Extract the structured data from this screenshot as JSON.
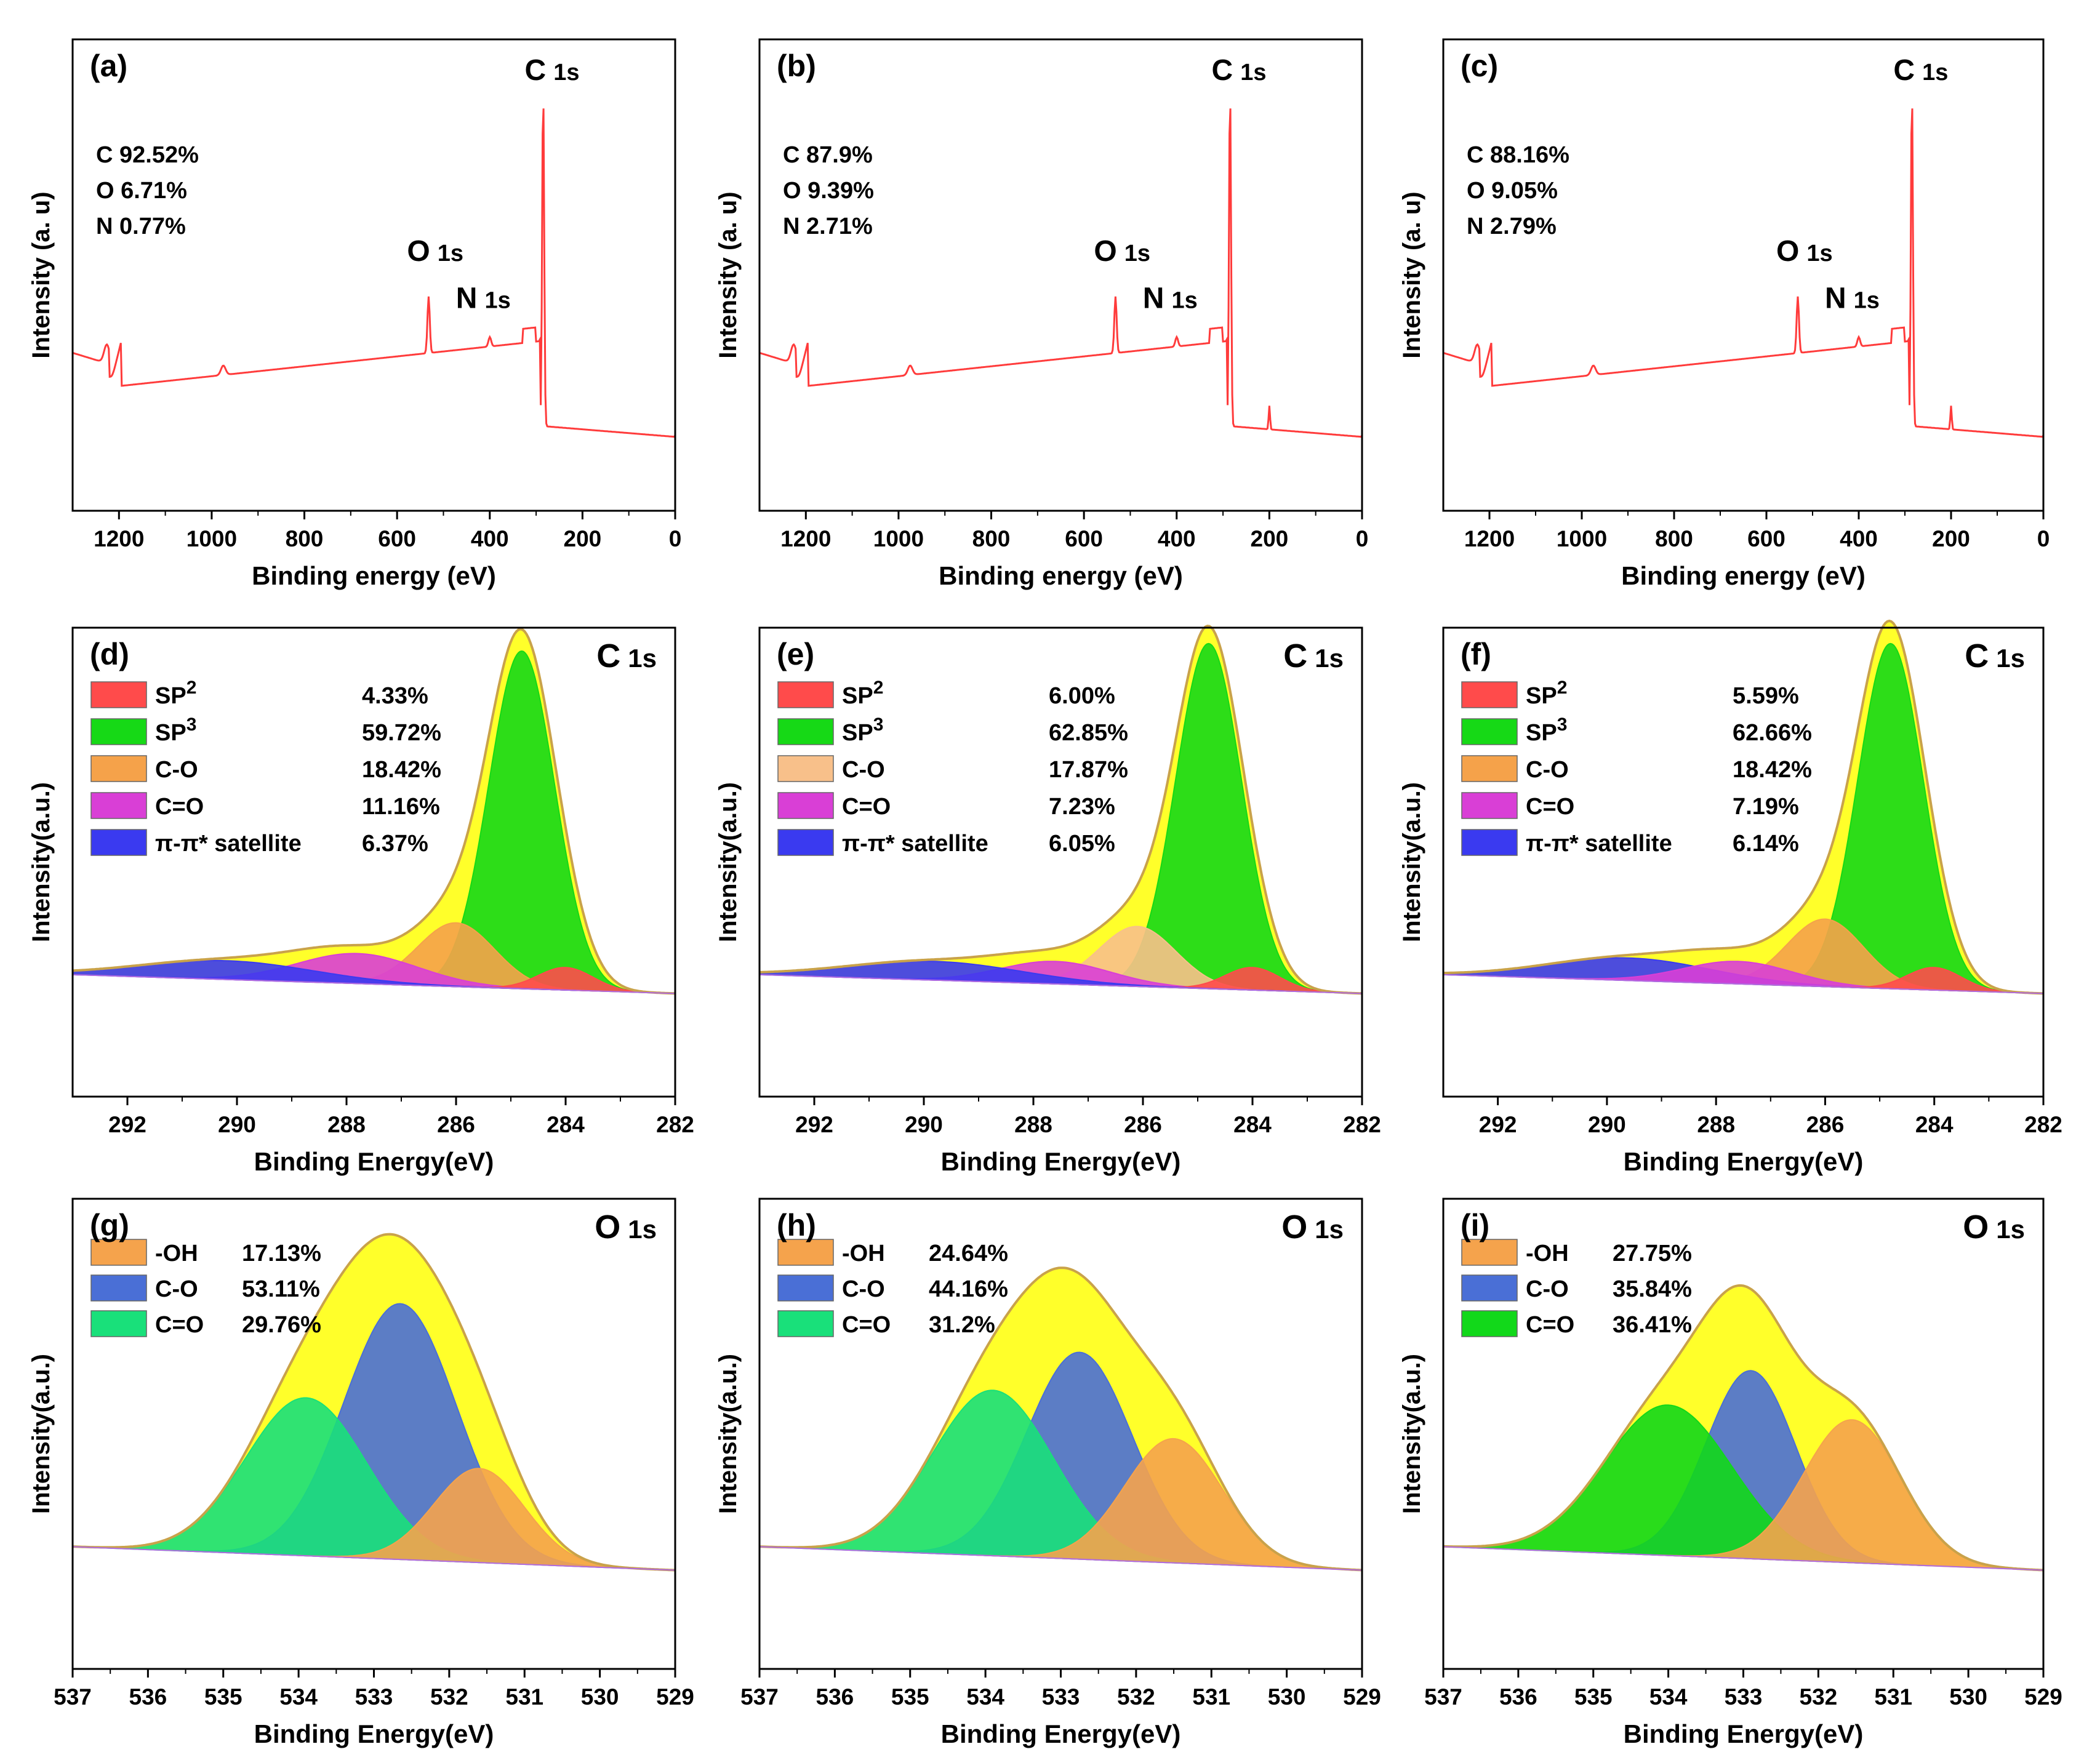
{
  "colors": {
    "survey_line": "#ff3b3b",
    "envelope_fill": "#ffff2a",
    "envelope_line": "#c9a24a",
    "sp2": "#ff4b4b",
    "sp3": "#16d916",
    "c_o": "#f5a24a",
    "c_o_light": "#f8c08a",
    "c_eq_o": "#d93fd6",
    "pi": "#3a3af0",
    "o_oh": "#f5a34c",
    "o_co": "#4a6fd6",
    "o_ceqo": "#19e07a",
    "o_ceqo_i": "#12d81a"
  },
  "chart_data": [
    {
      "id": "a",
      "type": "line",
      "panel_label": "(a)",
      "xlabel": "Binding energy (eV)",
      "ylabel": "Intensity (a. u)",
      "xlim": [
        1300,
        0
      ],
      "xticks": [
        "1200",
        "1000",
        "800",
        "600",
        "400",
        "200",
        "0"
      ],
      "composition": [
        "C 92.52%",
        "O 6.71%",
        "N 0.77%"
      ],
      "peaks": [
        {
          "el": "C",
          "sub": "1s",
          "x": 284.8
        },
        {
          "el": "O",
          "sub": "1s",
          "x": 532
        },
        {
          "el": "N",
          "sub": "1s",
          "x": 400
        }
      ],
      "series": [
        {
          "name": "survey",
          "heights": [
            0.1,
            0.68,
            0.85
          ]
        }
      ]
    },
    {
      "id": "b",
      "type": "line",
      "panel_label": "(b)",
      "xlabel": "Binding energy (eV)",
      "ylabel": "Intensity (a. u)",
      "xlim": [
        1300,
        0
      ],
      "xticks": [
        "1200",
        "1000",
        "800",
        "600",
        "400",
        "200",
        "0"
      ],
      "composition": [
        "C 87.9%",
        "O 9.39%",
        "N 2.71%"
      ],
      "peaks": [
        {
          "el": "C",
          "sub": "1s",
          "x": 284.8
        },
        {
          "el": "O",
          "sub": "1s",
          "x": 532
        },
        {
          "el": "N",
          "sub": "1s",
          "x": 400
        }
      ],
      "series": [
        {
          "name": "survey",
          "heights": [
            0.1,
            0.68,
            0.85
          ]
        }
      ]
    },
    {
      "id": "c",
      "type": "line",
      "panel_label": "(c)",
      "xlabel": "Binding energy (eV)",
      "ylabel": "Intensity (a. u)",
      "xlim": [
        1300,
        0
      ],
      "xticks": [
        "1200",
        "1000",
        "800",
        "600",
        "400",
        "200",
        "0"
      ],
      "composition": [
        "C 88.16%",
        "O 9.05%",
        "N 2.79%"
      ],
      "peaks": [
        {
          "el": "C",
          "sub": "1s",
          "x": 284.8
        },
        {
          "el": "O",
          "sub": "1s",
          "x": 532
        },
        {
          "el": "N",
          "sub": "1s",
          "x": 400
        }
      ],
      "series": [
        {
          "name": "survey",
          "heights": [
            0.1,
            0.68,
            0.85
          ]
        }
      ]
    },
    {
      "id": "d",
      "type": "area",
      "panel_label": "(d)",
      "core": "C",
      "core_sub": "1s",
      "xlabel": "Binding Energy(eV)",
      "ylabel": "Intensity(a.u.)",
      "xlim": [
        293,
        282
      ],
      "xticks": [
        "292",
        "290",
        "288",
        "286",
        "284",
        "282"
      ],
      "legend": [
        {
          "label": "SP",
          "sup": "2",
          "value": "4.33%",
          "color": "#ff4b4b"
        },
        {
          "label": "SP",
          "sup": "3",
          "value": "59.72%",
          "color": "#16d916"
        },
        {
          "label": "C-O",
          "sup": "",
          "value": "18.42%",
          "color": "#f5a24a"
        },
        {
          "label": "C=O",
          "sup": "",
          "value": "11.16%",
          "color": "#d93fd6"
        },
        {
          "label": "π-π* satellite",
          "sup": "",
          "value": "6.37%",
          "color": "#3a3af0"
        }
      ],
      "components": [
        {
          "name": "SP2",
          "center": 284.0,
          "height": 0.06,
          "width": 0.5
        },
        {
          "name": "SP3",
          "center": 284.8,
          "height": 0.9,
          "width": 0.6
        },
        {
          "name": "C-O",
          "center": 286.0,
          "height": 0.17,
          "width": 0.7
        },
        {
          "name": "C=O",
          "center": 287.8,
          "height": 0.08,
          "width": 1.1
        },
        {
          "name": "π-π* satellite",
          "center": 290.2,
          "height": 0.05,
          "width": 1.6
        }
      ]
    },
    {
      "id": "e",
      "type": "area",
      "panel_label": "(e)",
      "core": "C",
      "core_sub": "1s",
      "xlabel": "Binding Energy(eV)",
      "ylabel": "Intensity(a.u.)",
      "xlim": [
        293,
        282
      ],
      "xticks": [
        "292",
        "290",
        "288",
        "286",
        "284",
        "282"
      ],
      "legend": [
        {
          "label": "SP",
          "sup": "2",
          "value": "6.00%",
          "color": "#ff4b4b"
        },
        {
          "label": "SP",
          "sup": "3",
          "value": "62.85%",
          "color": "#16d916"
        },
        {
          "label": "C-O",
          "sup": "",
          "value": "17.87%",
          "color": "#f8c08a"
        },
        {
          "label": "C=O",
          "sup": "",
          "value": "7.23%",
          "color": "#d93fd6"
        },
        {
          "label": "π-π* satellite",
          "sup": "",
          "value": "6.05%",
          "color": "#3a3af0"
        }
      ],
      "components": [
        {
          "name": "SP2",
          "center": 284.0,
          "height": 0.06,
          "width": 0.5
        },
        {
          "name": "SP3",
          "center": 284.8,
          "height": 0.92,
          "width": 0.6
        },
        {
          "name": "C-O",
          "center": 286.1,
          "height": 0.16,
          "width": 0.7
        },
        {
          "name": "C=O",
          "center": 287.6,
          "height": 0.06,
          "width": 1.0
        },
        {
          "name": "π-π* satellite",
          "center": 289.8,
          "height": 0.05,
          "width": 1.6
        }
      ]
    },
    {
      "id": "f",
      "type": "area",
      "panel_label": "(f)",
      "core": "C",
      "core_sub": "1s",
      "xlabel": "Binding Energy(eV)",
      "ylabel": "Intensity(a.u.)",
      "xlim": [
        293,
        282
      ],
      "xticks": [
        "292",
        "290",
        "288",
        "286",
        "284",
        "282"
      ],
      "legend": [
        {
          "label": "SP",
          "sup": "2",
          "value": "5.59%",
          "color": "#ff4b4b"
        },
        {
          "label": "SP",
          "sup": "3",
          "value": "62.66%",
          "color": "#16d916"
        },
        {
          "label": "C-O",
          "sup": "",
          "value": "18.42%",
          "color": "#f5a24a"
        },
        {
          "label": "C=O",
          "sup": "",
          "value": "7.19%",
          "color": "#d93fd6"
        },
        {
          "label": "π-π* satellite",
          "sup": "",
          "value": "6.14%",
          "color": "#3a3af0"
        }
      ],
      "components": [
        {
          "name": "SP2",
          "center": 284.0,
          "height": 0.06,
          "width": 0.5
        },
        {
          "name": "SP3",
          "center": 284.8,
          "height": 0.92,
          "width": 0.6
        },
        {
          "name": "C-O",
          "center": 286.0,
          "height": 0.18,
          "width": 0.7
        },
        {
          "name": "C=O",
          "center": 287.6,
          "height": 0.06,
          "width": 1.0
        },
        {
          "name": "π-π* satellite",
          "center": 289.6,
          "height": 0.06,
          "width": 1.5
        }
      ]
    },
    {
      "id": "g",
      "type": "area",
      "panel_label": "(g)",
      "core": "O",
      "core_sub": "1s",
      "xlabel": "Binding Energy(eV)",
      "ylabel": "Intensity(a.u.)",
      "xlim": [
        537,
        529
      ],
      "xticks": [
        "537",
        "536",
        "535",
        "534",
        "533",
        "532",
        "531",
        "530",
        "529"
      ],
      "legend": [
        {
          "label": "-OH",
          "sup": "",
          "value": "17.13%",
          "color": "#f5a34c"
        },
        {
          "label": "C-O",
          "sup": "",
          "value": "53.11%",
          "color": "#4a6fd6"
        },
        {
          "label": "C=O",
          "sup": "",
          "value": "29.76%",
          "color": "#19e07a"
        }
      ],
      "components": [
        {
          "name": "-OH",
          "center": 531.6,
          "height": 0.25,
          "width": 0.6
        },
        {
          "name": "C-O",
          "center": 532.65,
          "height": 0.68,
          "width": 0.75
        },
        {
          "name": "C=O",
          "center": 533.9,
          "height": 0.42,
          "width": 0.8
        }
      ]
    },
    {
      "id": "h",
      "type": "area",
      "panel_label": "(h)",
      "core": "O",
      "core_sub": "1s",
      "xlabel": "Binding Energy(eV)",
      "ylabel": "Intensity(a.u.)",
      "xlim": [
        537,
        529
      ],
      "xticks": [
        "537",
        "536",
        "535",
        "534",
        "533",
        "532",
        "531",
        "530",
        "529"
      ],
      "legend": [
        {
          "label": "-OH",
          "sup": "",
          "value": "24.64%",
          "color": "#f5a34c"
        },
        {
          "label": "C-O",
          "sup": "",
          "value": "44.16%",
          "color": "#4a6fd6"
        },
        {
          "label": "C=O",
          "sup": "",
          "value": "31.2%",
          "color": "#19e07a"
        }
      ],
      "components": [
        {
          "name": "-OH",
          "center": 531.5,
          "height": 0.33,
          "width": 0.65
        },
        {
          "name": "C-O",
          "center": 532.75,
          "height": 0.55,
          "width": 0.7
        },
        {
          "name": "C=O",
          "center": 533.9,
          "height": 0.44,
          "width": 0.8
        }
      ]
    },
    {
      "id": "i",
      "type": "area",
      "panel_label": "(i)",
      "core": "O",
      "core_sub": "1s",
      "xlabel": "Binding Energy(eV)",
      "ylabel": "Intensity(a.u.)",
      "xlim": [
        537,
        529
      ],
      "xticks": [
        "537",
        "536",
        "535",
        "534",
        "533",
        "532",
        "531",
        "530",
        "529"
      ],
      "legend": [
        {
          "label": "-OH",
          "sup": "",
          "value": "27.75%",
          "color": "#f5a34c"
        },
        {
          "label": "C-O",
          "sup": "",
          "value": "35.84%",
          "color": "#4a6fd6"
        },
        {
          "label": "C=O",
          "sup": "",
          "value": "36.41%",
          "color": "#12d81a"
        }
      ],
      "components": [
        {
          "name": "-OH",
          "center": 531.55,
          "height": 0.38,
          "width": 0.65
        },
        {
          "name": "C-O",
          "center": 532.9,
          "height": 0.5,
          "width": 0.6
        },
        {
          "name": "C=O",
          "center": 534.0,
          "height": 0.4,
          "width": 0.85
        }
      ]
    }
  ]
}
